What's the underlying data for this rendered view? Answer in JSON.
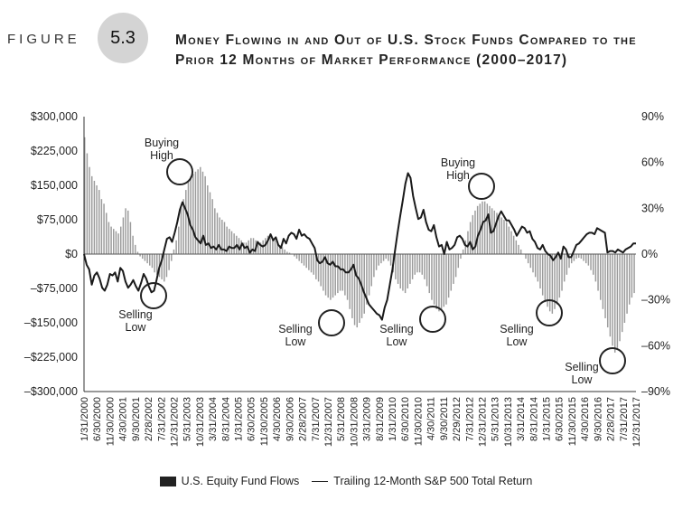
{
  "header": {
    "figure_label": "FIGURE",
    "figure_number": "5.3",
    "title": "Money Flowing in and Out of U.S. Stock Funds Compared to the Prior 12 Months of Market Performance (2000–2017)"
  },
  "chart_data": {
    "type": "bar",
    "title": "Money Flowing in and Out of U.S. Stock Funds Compared to the Prior 12 Months of Market Performance (2000–2017)",
    "y_left": {
      "ticks": [
        "$300,000",
        "$225,000",
        "$150,000",
        "$75,000",
        "$0",
        "–$75,000",
        "–$150,000",
        "–$225,000",
        "–$300,000"
      ],
      "range": [
        -300000,
        300000
      ]
    },
    "y_right": {
      "ticks": [
        "90%",
        "60%",
        "30%",
        "0%",
        "–30%",
        "–60%",
        "–90%"
      ],
      "range": [
        -90,
        90
      ]
    },
    "x_ticks": [
      "1/31/2000",
      "6/30/2000",
      "11/30/2000",
      "4/30/2001",
      "9/30/2001",
      "2/28/2002",
      "7/31/2002",
      "12/31/2002",
      "5/31/2003",
      "10/31/2003",
      "3/31/2004",
      "8/31/2004",
      "1/31/2005",
      "6/30/2005",
      "11/30/2005",
      "4/30/2006",
      "9/30/2006",
      "2/28/2007",
      "7/31/2007",
      "12/31/2007",
      "5/31/2008",
      "10/31/2008",
      "3/31/2009",
      "8/31/2009",
      "1/31/2010",
      "6/30/2010",
      "11/30/2010",
      "4/30/2011",
      "9/30/2011",
      "2/29/2012",
      "7/31/2012",
      "12/31/2012",
      "5/31/2013",
      "10/31/2013",
      "3/31/2014",
      "8/31/2014",
      "1/31/2015",
      "6/30/2015",
      "11/30/2015",
      "4/30/2016",
      "9/30/2016",
      "2/28/2017",
      "7/31/2017",
      "12/31/2017"
    ],
    "series": [
      {
        "name": "U.S. Equity Fund Flows",
        "kind": "bar",
        "unit": "$",
        "values": [
          255000,
          220000,
          190000,
          170000,
          160000,
          150000,
          140000,
          120000,
          110000,
          90000,
          70000,
          60000,
          55000,
          50000,
          45000,
          60000,
          80000,
          100000,
          95000,
          70000,
          40000,
          20000,
          5000,
          -5000,
          -10000,
          -15000,
          -20000,
          -25000,
          -30000,
          -40000,
          -45000,
          -50000,
          -55000,
          -60000,
          -50000,
          -35000,
          -15000,
          10000,
          30000,
          60000,
          100000,
          120000,
          140000,
          160000,
          170000,
          175000,
          180000,
          185000,
          190000,
          180000,
          170000,
          150000,
          135000,
          120000,
          100000,
          90000,
          80000,
          75000,
          70000,
          60000,
          55000,
          50000,
          45000,
          40000,
          35000,
          30000,
          25000,
          25000,
          30000,
          35000,
          35000,
          30000,
          25000,
          25000,
          30000,
          35000,
          40000,
          40000,
          35000,
          30000,
          25000,
          20000,
          15000,
          10000,
          5000,
          3000,
          0,
          -5000,
          -10000,
          -15000,
          -20000,
          -25000,
          -30000,
          -35000,
          -40000,
          -45000,
          -55000,
          -60000,
          -70000,
          -80000,
          -90000,
          -95000,
          -100000,
          -95000,
          -90000,
          -85000,
          -80000,
          -80000,
          -90000,
          -100000,
          -120000,
          -140000,
          -155000,
          -160000,
          -150000,
          -140000,
          -130000,
          -110000,
          -90000,
          -70000,
          -50000,
          -35000,
          -25000,
          -20000,
          -15000,
          -10000,
          -15000,
          -25000,
          -40000,
          -55000,
          -65000,
          -75000,
          -80000,
          -85000,
          -75000,
          -65000,
          -55000,
          -45000,
          -40000,
          -40000,
          -45000,
          -55000,
          -70000,
          -85000,
          -100000,
          -110000,
          -120000,
          -125000,
          -120000,
          -115000,
          -110000,
          -95000,
          -80000,
          -65000,
          -50000,
          -30000,
          -10000,
          10000,
          30000,
          50000,
          70000,
          85000,
          95000,
          105000,
          110000,
          115000,
          115000,
          110000,
          105000,
          100000,
          95000,
          90000,
          85000,
          80000,
          75000,
          70000,
          60000,
          50000,
          40000,
          30000,
          20000,
          10000,
          0,
          -10000,
          -20000,
          -30000,
          -40000,
          -50000,
          -60000,
          -75000,
          -90000,
          -105000,
          -115000,
          -125000,
          -130000,
          -120000,
          -110000,
          -95000,
          -80000,
          -60000,
          -45000,
          -30000,
          -20000,
          -15000,
          -10000,
          -8000,
          -10000,
          -15000,
          -20000,
          -25000,
          -35000,
          -45000,
          -60000,
          -80000,
          -100000,
          -120000,
          -140000,
          -160000,
          -180000,
          -200000,
          -215000,
          -205000,
          -190000,
          -170000,
          -150000,
          -130000,
          -110000,
          -95000,
          -85000
        ]
      },
      {
        "name": "Trailing 12-Month S&P 500 Total Return",
        "kind": "line",
        "unit": "%",
        "values": [
          0,
          -7,
          -10,
          -20,
          -14,
          -12,
          -16,
          -22,
          -24,
          -20,
          -13,
          -14,
          -12,
          -18,
          -9,
          -11,
          -18,
          -22,
          -20,
          -17,
          -21,
          -24,
          -19,
          -13,
          -16,
          -21,
          -25,
          -24,
          -17,
          -9,
          -4,
          3,
          10,
          11,
          8,
          14,
          21,
          29,
          34,
          30,
          26,
          19,
          16,
          11,
          9,
          7,
          12,
          6,
          7,
          4,
          5,
          3,
          6,
          3,
          3,
          2,
          5,
          4,
          4,
          6,
          3,
          7,
          4,
          5,
          1,
          3,
          2,
          8,
          6,
          5,
          6,
          9,
          13,
          9,
          11,
          6,
          4,
          10,
          7,
          12,
          14,
          13,
          10,
          16,
          12,
          13,
          11,
          10,
          7,
          4,
          -4,
          -6,
          -5,
          -2,
          -6,
          -7,
          -5,
          -8,
          -8,
          -10,
          -10,
          -12,
          -12,
          -10,
          -7,
          -14,
          -16,
          -20,
          -25,
          -29,
          -33,
          -35,
          -37,
          -39,
          -40,
          -43,
          -35,
          -30,
          -20,
          -10,
          2,
          14,
          25,
          35,
          46,
          53,
          50,
          38,
          30,
          23,
          24,
          29,
          21,
          16,
          15,
          19,
          11,
          5,
          6,
          0,
          8,
          3,
          4,
          6,
          11,
          12,
          10,
          6,
          5,
          8,
          3,
          5,
          12,
          16,
          21,
          22,
          26,
          14,
          15,
          20,
          25,
          28,
          25,
          22,
          22,
          19,
          16,
          12,
          15,
          18,
          17,
          14,
          15,
          10,
          8,
          4,
          3,
          6,
          2,
          0,
          -1,
          -4,
          -2,
          1,
          -3,
          5,
          3,
          -2,
          -2,
          2,
          6,
          7,
          9,
          11,
          13,
          14,
          14,
          13,
          17,
          16,
          15,
          14,
          1,
          2,
          2,
          1,
          3,
          2,
          1,
          3,
          4,
          5,
          7,
          7
        ]
      }
    ],
    "annotations": [
      {
        "label": [
          "Buying",
          "High"
        ]
      },
      {
        "label": [
          "Selling",
          "Low"
        ]
      },
      {
        "label": [
          "Selling",
          "Low"
        ]
      },
      {
        "label": [
          "Selling",
          "Low"
        ]
      },
      {
        "label": [
          "Buying",
          "High"
        ]
      },
      {
        "label": [
          "Selling",
          "Low"
        ]
      },
      {
        "label": [
          "Selling",
          "Low"
        ]
      }
    ],
    "legend_position": "bottom"
  }
}
